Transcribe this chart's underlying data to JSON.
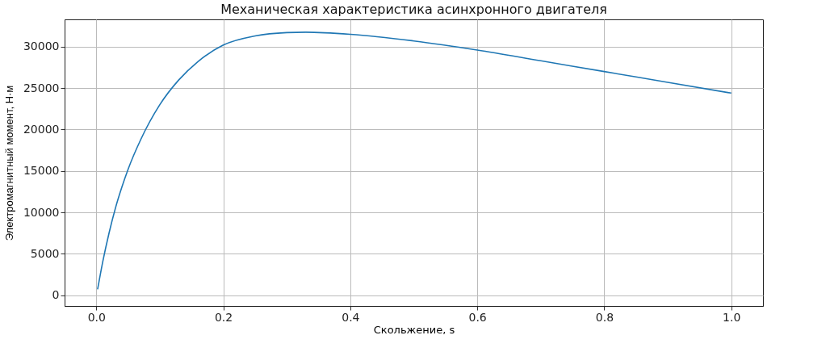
{
  "chart_data": {
    "type": "line",
    "title": "Механическая характеристика асинхронного двигателя",
    "xlabel": "Скольжение, s",
    "ylabel": "Электромагнитный момент, Н·м",
    "x": [
      0.002,
      0.01,
      0.02,
      0.03,
      0.04,
      0.05,
      0.07,
      0.1,
      0.13,
      0.16,
      0.2,
      0.25,
      0.3,
      0.33,
      0.4,
      0.5,
      0.6,
      0.7,
      0.8,
      0.9,
      1.0
    ],
    "series": [
      {
        "color": "#1f77b4",
        "values": [
          700,
          4000,
          7500,
          10500,
          13000,
          15200,
          18800,
          23000,
          26000,
          28200,
          30200,
          31300,
          31700,
          31750,
          31500,
          30700,
          29600,
          28300,
          27000,
          25700,
          24400
        ]
      }
    ],
    "xlim": [
      -0.05,
      1.05
    ],
    "ylim": [
      -1300,
      33300
    ],
    "xticks": [
      {
        "value": 0,
        "label": "0.0"
      },
      {
        "value": 0.2,
        "label": "0.2"
      },
      {
        "value": 0.4,
        "label": "0.4"
      },
      {
        "value": 0.6,
        "label": "0.6"
      },
      {
        "value": 0.8,
        "label": "0.8"
      },
      {
        "value": 1,
        "label": "1.0"
      }
    ],
    "yticks": [
      0,
      5000,
      10000,
      15000,
      20000,
      25000,
      30000
    ],
    "grid": true
  }
}
